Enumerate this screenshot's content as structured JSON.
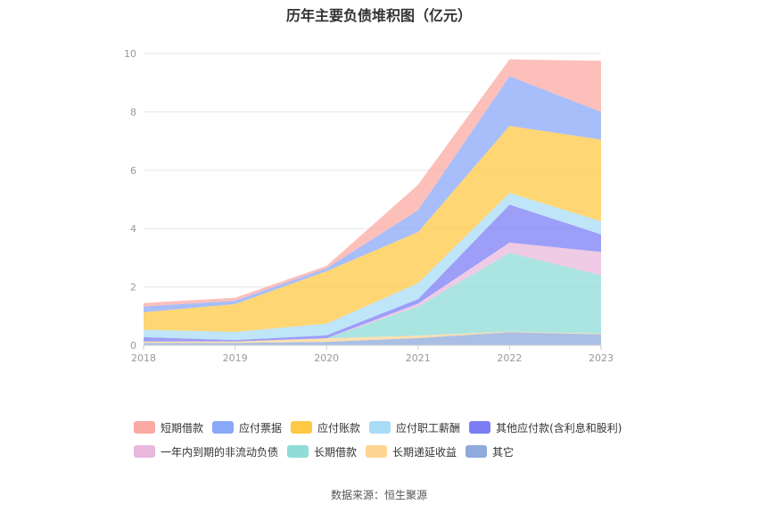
{
  "chart_data": {
    "type": "area",
    "stacked": true,
    "title": "历年主要负债堆积图（亿元）",
    "x": [
      "2018",
      "2019",
      "2020",
      "2021",
      "2022",
      "2023"
    ],
    "ylim": [
      0,
      10
    ],
    "yticks": [
      "0",
      "2",
      "4",
      "6",
      "8",
      "10"
    ],
    "grid": true,
    "legend_position": "bottom",
    "series": [
      {
        "name": "其它",
        "color": "#8faadc",
        "values": [
          0.08,
          0.08,
          0.12,
          0.25,
          0.45,
          0.38
        ]
      },
      {
        "name": "长期递延收益",
        "color": "#ffd591",
        "values": [
          0.05,
          0.05,
          0.12,
          0.08,
          0.02,
          0.02
        ]
      },
      {
        "name": "长期借款",
        "color": "#8fdcd8",
        "values": [
          0.0,
          0.0,
          0.0,
          1.0,
          2.7,
          2.0
        ]
      },
      {
        "name": "一年内到期的非流动负债",
        "color": "#e8b8dc",
        "values": [
          0.0,
          0.0,
          0.0,
          0.1,
          0.35,
          0.8
        ]
      },
      {
        "name": "其他应付款(含利息和股利)",
        "color": "#7b7df5",
        "values": [
          0.15,
          0.05,
          0.1,
          0.15,
          1.3,
          0.6
        ]
      },
      {
        "name": "应付职工薪酬",
        "color": "#a8dcf5",
        "values": [
          0.25,
          0.28,
          0.4,
          0.55,
          0.4,
          0.45
        ]
      },
      {
        "name": "应付账款",
        "color": "#ffc845",
        "values": [
          0.6,
          0.95,
          1.8,
          1.75,
          2.3,
          2.8
        ]
      },
      {
        "name": "应付票据",
        "color": "#8aa8f8",
        "values": [
          0.2,
          0.12,
          0.1,
          0.75,
          1.7,
          0.95
        ]
      },
      {
        "name": "短期借款",
        "color": "#fba9a3",
        "values": [
          0.12,
          0.1,
          0.08,
          0.87,
          0.58,
          1.75
        ]
      }
    ],
    "legend_order": [
      "短期借款",
      "应付票据",
      "应付账款",
      "应付职工薪酬",
      "其他应付款(含利息和股利)",
      "一年内到期的非流动负债",
      "长期借款",
      "长期递延收益",
      "其它"
    ]
  },
  "source_text": "数据来源：恒生聚源"
}
